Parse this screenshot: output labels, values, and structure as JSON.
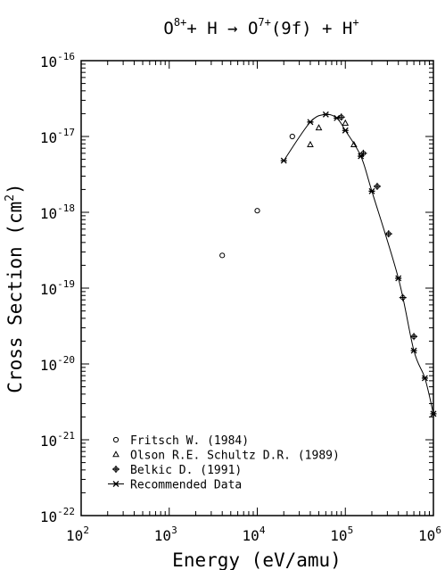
{
  "chart_data": {
    "type": "scatter",
    "title": {
      "base1": "O",
      "sup1": "8+",
      "mid": "+ H → O",
      "sup2": "7+",
      "tail": "(9f) + H",
      "sup3": "+"
    },
    "xlabel": "Energy (eV/amu)",
    "ylabel": {
      "main": "Cross Section (cm",
      "sup": "2",
      "close": ")"
    },
    "x_scale": "log",
    "y_scale": "log",
    "xlim": [
      100,
      1000000
    ],
    "ylim": [
      1e-22,
      1e-16
    ],
    "x_tick_labels": [
      {
        "value": 100,
        "base": "10",
        "exp": "2"
      },
      {
        "value": 1000,
        "base": "10",
        "exp": "3"
      },
      {
        "value": 10000,
        "base": "10",
        "exp": "4"
      },
      {
        "value": 100000,
        "base": "10",
        "exp": "5"
      },
      {
        "value": 1000000,
        "base": "10",
        "exp": "6"
      }
    ],
    "y_tick_labels": [
      {
        "value": 1e-22,
        "base": "10",
        "exp": "-22"
      },
      {
        "value": 1e-21,
        "base": "10",
        "exp": "-21"
      },
      {
        "value": 1e-20,
        "base": "10",
        "exp": "-20"
      },
      {
        "value": 1e-19,
        "base": "10",
        "exp": "-19"
      },
      {
        "value": 1e-18,
        "base": "10",
        "exp": "-18"
      },
      {
        "value": 1e-17,
        "base": "10",
        "exp": "-17"
      },
      {
        "value": 1e-16,
        "base": "10",
        "exp": "-16"
      }
    ],
    "legend_position": "bottom-left",
    "series": [
      {
        "name": "Fritsch W. (1984)",
        "marker": "circle",
        "points": [
          [
            4000,
            2.7e-19
          ],
          [
            10000,
            1.05e-18
          ],
          [
            25000,
            1e-17
          ]
        ]
      },
      {
        "name": "Olson R.E. Schultz D.R. (1989)",
        "marker": "triangle",
        "points": [
          [
            40000,
            7.8e-18
          ],
          [
            50000,
            1.3e-17
          ],
          [
            100000,
            1.5e-17
          ],
          [
            125000,
            7.8e-18
          ]
        ]
      },
      {
        "name": "Belkic D. (1991)",
        "marker": "circle-plus",
        "points": [
          [
            90000,
            1.8e-17
          ],
          [
            160000,
            6e-18
          ],
          [
            230000,
            2.2e-18
          ],
          [
            310000,
            5.2e-19
          ],
          [
            450000,
            7.5e-20
          ],
          [
            600000,
            2.3e-20
          ]
        ]
      },
      {
        "name": "Recommended Data",
        "marker": "asterisk",
        "line": true,
        "points": [
          [
            20000,
            4.8e-18
          ],
          [
            40000,
            1.55e-17
          ],
          [
            60000,
            1.95e-17
          ],
          [
            80000,
            1.75e-17
          ],
          [
            100000,
            1.2e-17
          ],
          [
            150000,
            5.5e-18
          ],
          [
            200000,
            1.9e-18
          ],
          [
            400000,
            1.35e-19
          ],
          [
            600000,
            1.5e-20
          ],
          [
            800000,
            6.5e-21
          ],
          [
            1000000,
            2.2e-21
          ]
        ]
      }
    ]
  }
}
